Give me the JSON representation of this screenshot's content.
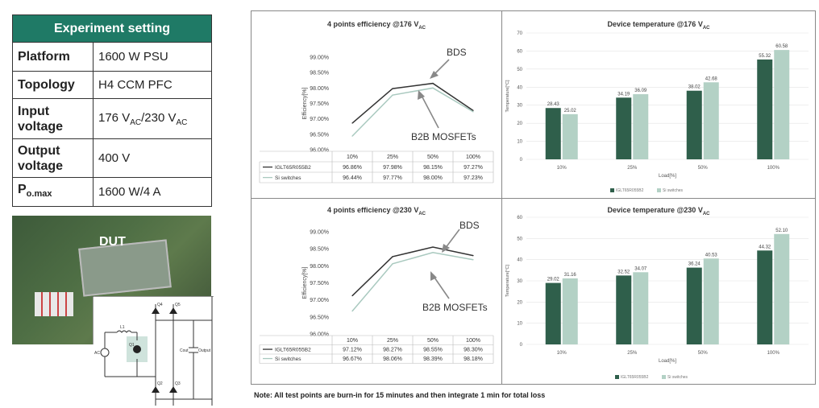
{
  "settings": {
    "header": "Experiment setting",
    "rows": [
      {
        "key": "Platform",
        "value": "1600 W PSU"
      },
      {
        "key": "Topology",
        "value": "H4 CCM PFC"
      },
      {
        "key": "Input voltage",
        "value_parts": [
          "176 V",
          "AC",
          "/230 V",
          "AC"
        ]
      },
      {
        "key": "Output voltage",
        "value": "400 V"
      },
      {
        "key_parts": [
          "P",
          "o.max"
        ],
        "value": "1600 W/4 A"
      }
    ]
  },
  "photo": {
    "label": "DUT"
  },
  "schematic": {
    "labels": [
      "L1",
      "Q1",
      "Q2",
      "Q3",
      "Q4",
      "Q5",
      "AC",
      "Cout",
      "Output"
    ]
  },
  "note": "Note: All test points are burn-in for 15 minutes and then integrate 1 min for total loss",
  "colors": {
    "dark": "#2f5f4b",
    "light": "#b3d1c5",
    "eff_dark": "#333333",
    "eff_light": "#a9c9bf"
  },
  "chart_data": [
    {
      "type": "line",
      "title_parts": [
        "4 points efficiency @176 V",
        "AC"
      ],
      "ylabel": "Efficiency[%]",
      "categories": [
        "10%",
        "25%",
        "50%",
        "100%"
      ],
      "yticks": [
        "96.00%",
        "96.50%",
        "97.00%",
        "97.50%",
        "98.00%",
        "98.50%",
        "99.00%"
      ],
      "ylim": [
        96.0,
        99.0
      ],
      "series": [
        {
          "name": "IGLT65R055B2",
          "values": [
            96.86,
            97.98,
            98.15,
            97.27
          ],
          "labels": [
            "96.86%",
            "97.98%",
            "98.15%",
            "97.27%"
          ]
        },
        {
          "name": "Si switches",
          "values": [
            96.44,
            97.77,
            98.0,
            97.23
          ],
          "labels": [
            "96.44%",
            "97.77%",
            "98.00%",
            "97.23%"
          ]
        }
      ],
      "annotations": [
        "BDS",
        "B2B MOSFETs"
      ]
    },
    {
      "type": "bar",
      "title_parts": [
        "Device temperature @176 V",
        "AC"
      ],
      "ylabel": "Temperature[°C]",
      "xlabel": "Load[%]",
      "categories": [
        "10%",
        "25%",
        "50%",
        "100%"
      ],
      "yticks": [
        "0",
        "10",
        "20",
        "30",
        "40",
        "50",
        "60",
        "70"
      ],
      "ylim": [
        0,
        70
      ],
      "series": [
        {
          "name": "IGLT65R055B2",
          "values": [
            28.43,
            34.19,
            38.02,
            55.32
          ],
          "labels": [
            "28.43",
            "34.19",
            "38.02",
            "55.32"
          ]
        },
        {
          "name": "Si switches",
          "values": [
            25.02,
            36.09,
            42.68,
            60.58
          ],
          "labels": [
            "25.02",
            "36.09",
            "42.68",
            "60.58"
          ]
        }
      ],
      "legend": "bottom"
    },
    {
      "type": "line",
      "title_parts": [
        "4 points efficiency @230 V",
        "AC"
      ],
      "ylabel": "Efficiency[%]",
      "categories": [
        "10%",
        "25%",
        "50%",
        "100%"
      ],
      "yticks": [
        "96.00%",
        "96.50%",
        "97.00%",
        "97.50%",
        "98.00%",
        "98.50%",
        "99.00%"
      ],
      "ylim": [
        96.0,
        99.0
      ],
      "series": [
        {
          "name": "IGLT65R055B2",
          "values": [
            97.12,
            98.27,
            98.55,
            98.3
          ],
          "labels": [
            "97.12%",
            "98.27%",
            "98.55%",
            "98.30%"
          ]
        },
        {
          "name": "Si switches",
          "values": [
            96.67,
            98.06,
            98.39,
            98.18
          ],
          "labels": [
            "96.67%",
            "98.06%",
            "98.39%",
            "98.18%"
          ]
        }
      ],
      "annotations": [
        "BDS",
        "B2B MOSFETs"
      ]
    },
    {
      "type": "bar",
      "title_parts": [
        "Device temperature @230 V",
        "AC"
      ],
      "ylabel": "Temperature[°C]",
      "xlabel": "Load[%]",
      "categories": [
        "10%",
        "25%",
        "50%",
        "100%"
      ],
      "yticks": [
        "0",
        "10",
        "20",
        "30",
        "40",
        "50",
        "60"
      ],
      "ylim": [
        0,
        60
      ],
      "series": [
        {
          "name": "IGLT65R055B2",
          "values": [
            29.02,
            32.52,
            36.24,
            44.32
          ],
          "labels": [
            "29.02",
            "32.52",
            "36.24",
            "44.32"
          ]
        },
        {
          "name": "Si switches",
          "values": [
            31.16,
            34.07,
            40.53,
            52.1
          ],
          "labels": [
            "31.16",
            "34.07",
            "40.53",
            "52.10"
          ]
        }
      ],
      "legend": "bottom"
    }
  ]
}
